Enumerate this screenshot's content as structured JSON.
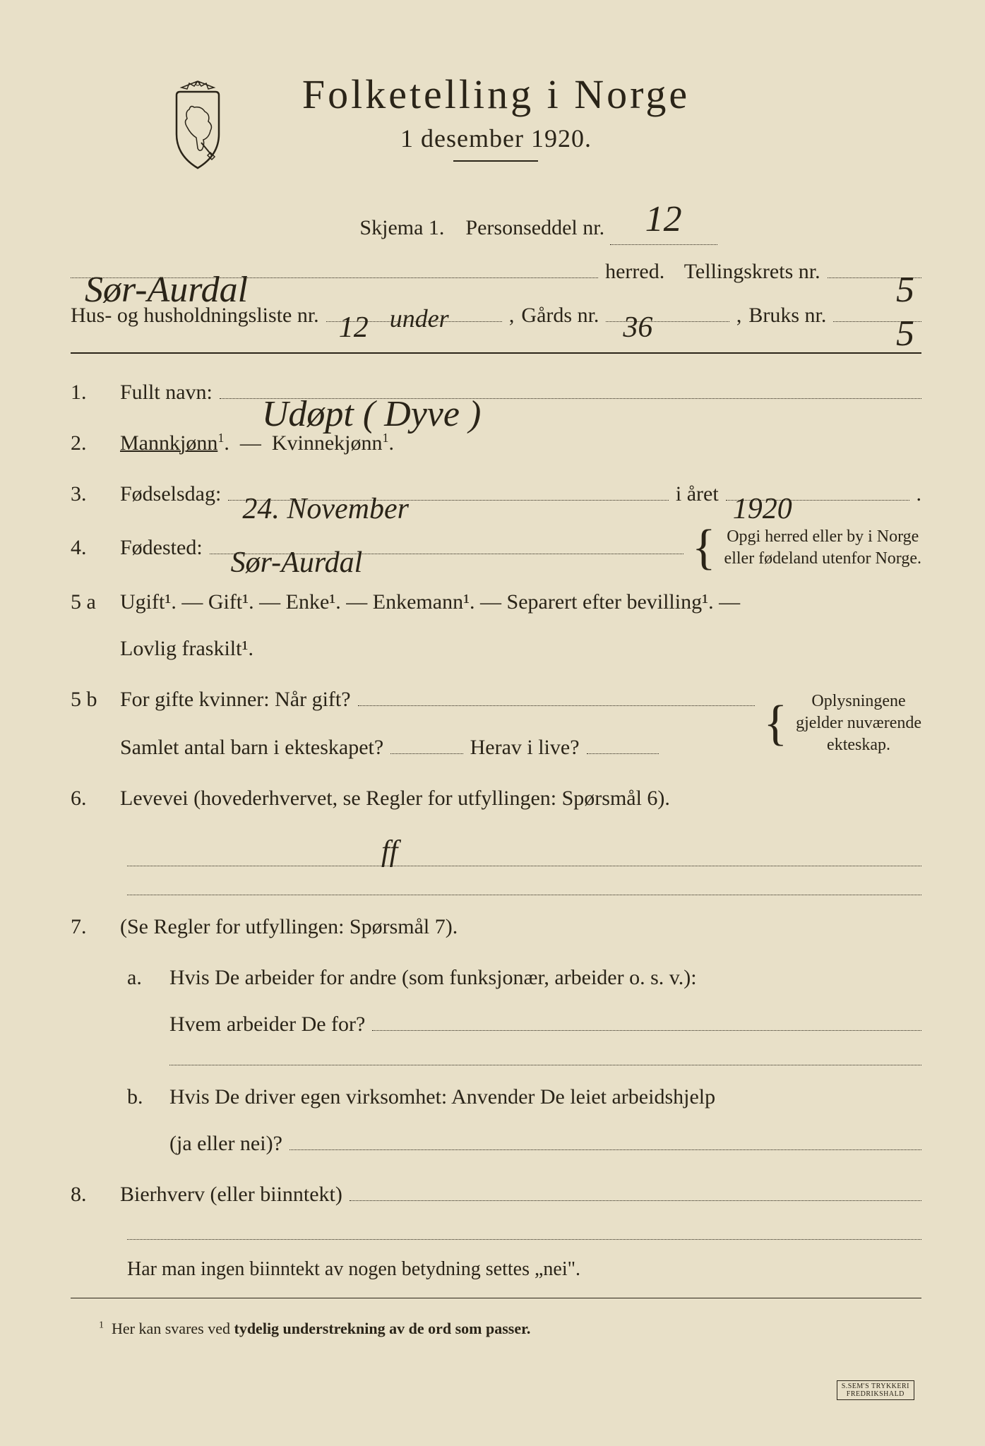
{
  "header": {
    "title": "Folketelling  i  Norge",
    "subtitle": "1 desember 1920."
  },
  "meta": {
    "skjema_label": "Skjema 1.",
    "personseddel_label": "Personseddel nr.",
    "personseddel_nr": "12",
    "herred_value": "Sør-Aurdal",
    "herred_label": "herred.",
    "tellingskrets_label": "Tellingskrets nr.",
    "tellingskrets_nr": "5",
    "husliste_label": "Hus- og husholdningsliste nr.",
    "husliste_nr": "12",
    "husliste_extra": "under",
    "gards_label": "Gårds nr.",
    "gards_nr": "36",
    "bruks_label": "Bruks nr.",
    "bruks_nr": "5"
  },
  "q1": {
    "num": "1.",
    "label": "Fullt navn:",
    "value": "Udøpt  ( Dyve )"
  },
  "q2": {
    "num": "2.",
    "mann": "Mannkjønn",
    "kvinne": "Kvinnekjønn",
    "sup": "1"
  },
  "q3": {
    "num": "3.",
    "label": "Fødselsdag:",
    "day": "24. November",
    "year_label": "i året",
    "year": "1920"
  },
  "q4": {
    "num": "4.",
    "label": "Fødested:",
    "value": "Sør-Aurdal",
    "note1": "Opgi herred eller by i Norge",
    "note2": "eller fødeland utenfor Norge."
  },
  "q5a": {
    "num": "5 a",
    "options": "Ugift¹. — Gift¹. — Enke¹. — Enkemann¹. — Separert efter bevilling¹. —",
    "options2": "Lovlig fraskilt¹."
  },
  "q5b": {
    "num": "5 b",
    "line1a": "For gifte kvinner:  Når gift?",
    "line2a": "Samlet antal barn i ekteskapet?",
    "line2b": "Herav i live?",
    "note1": "Oplysningene",
    "note2": "gjelder nuværende",
    "note3": "ekteskap."
  },
  "q6": {
    "num": "6.",
    "label": "Levevei (hovederhvervet, se Regler for utfyllingen:  Spørsmål 6).",
    "value": "ff"
  },
  "q7": {
    "num": "7.",
    "intro": "(Se Regler for utfyllingen:  Spørsmål 7).",
    "a_num": "a.",
    "a_line1": "Hvis De arbeider for andre (som funksjonær, arbeider o. s. v.):",
    "a_line2": "Hvem arbeider De for?",
    "b_num": "b.",
    "b_line1": "Hvis De driver egen virksomhet:  Anvender De leiet arbeidshjelp",
    "b_line2": "(ja eller nei)?"
  },
  "q8": {
    "num": "8.",
    "label": "Bierhverv (eller biinntekt)"
  },
  "footer": {
    "line": "Har man ingen biinntekt av nogen betydning settes „nei\".",
    "footnote": "Her kan svares ved tydelig understrekning av de ord som passer.",
    "printer1": "S.SEM'S TRYKKERI",
    "printer2": "FREDRIKSHALD"
  },
  "colors": {
    "paper": "#e8e0c8",
    "ink": "#2a2418",
    "background": "#1a1410"
  }
}
